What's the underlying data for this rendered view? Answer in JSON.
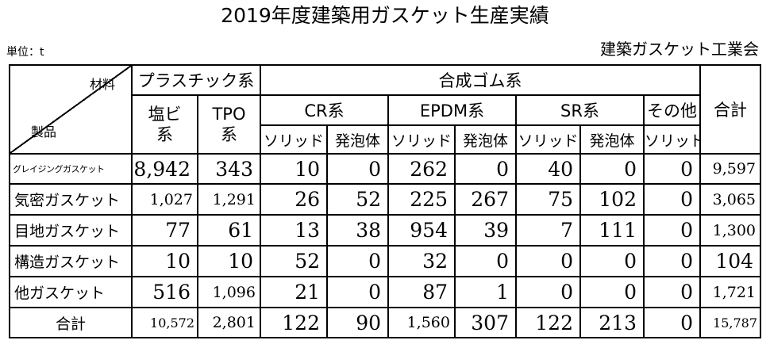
{
  "title": "2019年度建築用ガスケット生産実績",
  "unit": "単位：t",
  "org": "建築ガスケット工業会",
  "header": {
    "corner_top": "材料",
    "corner_bottom": "製品",
    "plastic": "プラスチック系",
    "rubber": "合成ゴム系",
    "total": "合計",
    "pvc": "塩ビ系",
    "tpo": "TPO系",
    "cr": "CR系",
    "epdm": "EPDM系",
    "sr": "SR系",
    "other": "その他",
    "solid": "ソリッド",
    "foam": "発泡体"
  },
  "rows": [
    {
      "label": "グレイジングガスケット",
      "pvc": "8,942",
      "tpo": "343",
      "cr_solid": "10",
      "cr_foam": "0",
      "epdm_solid": "262",
      "epdm_foam": "0",
      "sr_solid": "40",
      "sr_foam": "0",
      "other_solid": "0",
      "total": "9,597"
    },
    {
      "label": "気密ガスケット",
      "pvc": "1,027",
      "tpo": "1,291",
      "cr_solid": "26",
      "cr_foam": "52",
      "epdm_solid": "225",
      "epdm_foam": "267",
      "sr_solid": "75",
      "sr_foam": "102",
      "other_solid": "0",
      "total": "3,065"
    },
    {
      "label": "目地ガスケット",
      "pvc": "77",
      "tpo": "61",
      "cr_solid": "13",
      "cr_foam": "38",
      "epdm_solid": "954",
      "epdm_foam": "39",
      "sr_solid": "7",
      "sr_foam": "111",
      "other_solid": "0",
      "total": "1,300"
    },
    {
      "label": "構造ガスケット",
      "pvc": "10",
      "tpo": "10",
      "cr_solid": "52",
      "cr_foam": "0",
      "epdm_solid": "32",
      "epdm_foam": "0",
      "sr_solid": "0",
      "sr_foam": "0",
      "other_solid": "0",
      "total": "104"
    },
    {
      "label": "他ガスケット",
      "pvc": "516",
      "tpo": "1,096",
      "cr_solid": "21",
      "cr_foam": "0",
      "epdm_solid": "87",
      "epdm_foam": "1",
      "sr_solid": "0",
      "sr_foam": "0",
      "other_solid": "0",
      "total": "1,721"
    },
    {
      "label": "合計",
      "pvc": "10,572",
      "tpo": "2,801",
      "cr_solid": "122",
      "cr_foam": "90",
      "epdm_solid": "1,560",
      "epdm_foam": "307",
      "sr_solid": "122",
      "sr_foam": "213",
      "other_solid": "0",
      "total": "15,787"
    }
  ]
}
